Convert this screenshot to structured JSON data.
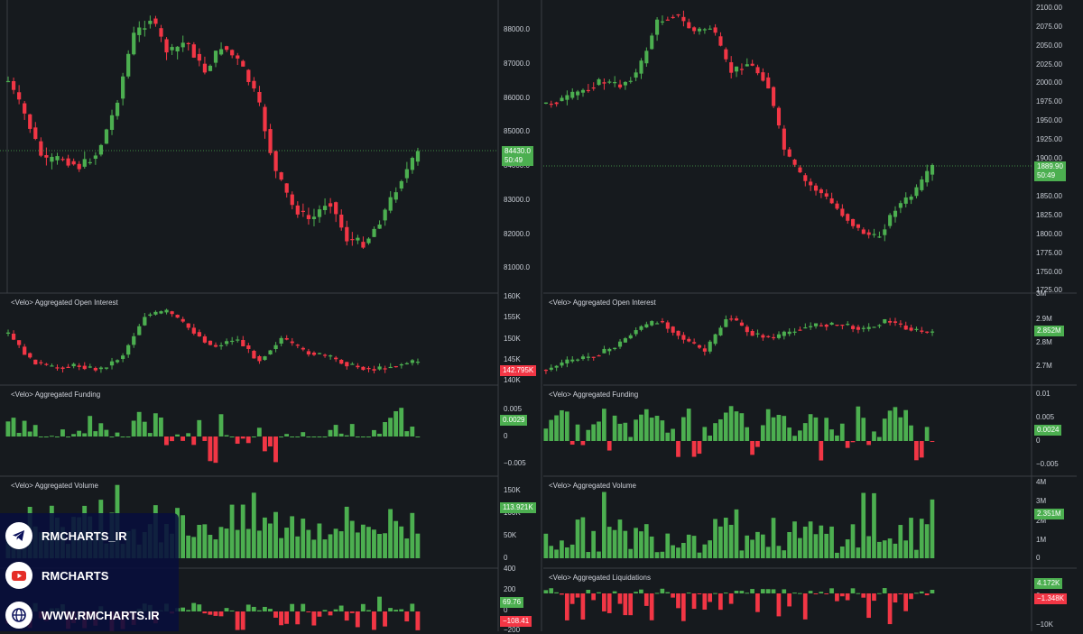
{
  "colors": {
    "up": "#4caf50",
    "down": "#f23645",
    "background": "#161a1e",
    "grid": "#2f3338",
    "promo_bg": "#0a105a"
  },
  "left": {
    "price_ticks": [
      "88000.0",
      "87000.0",
      "86000.0",
      "85000.0",
      "84000.0",
      "83000.0",
      "82000.0",
      "81000.0"
    ],
    "price_tag": {
      "value": "84430.0",
      "countdown": "50:49"
    },
    "oi": {
      "label": "<Velo> Aggregated Open Interest",
      "ticks": [
        "160K",
        "155K",
        "150K",
        "145K",
        "140K"
      ],
      "tag": "142.795K"
    },
    "funding": {
      "label": "<Velo> Aggregated Funding",
      "ticks": [
        "0.005",
        "0",
        "−0.005"
      ],
      "tag": "0.0029"
    },
    "volume": {
      "label": "<Velo> Aggregated Volume",
      "ticks": [
        "150K",
        "100K",
        "50K",
        "0"
      ],
      "tag": "113.921K"
    },
    "liq": {
      "ticks": [
        "400",
        "200",
        "0",
        "−200"
      ],
      "tag_up": "69.76",
      "tag_down": "−108.41"
    }
  },
  "right": {
    "price_ticks": [
      "2100.00",
      "2075.00",
      "2050.00",
      "2025.00",
      "2000.00",
      "1975.00",
      "1950.00",
      "1925.00",
      "1900.00",
      "1875.00",
      "1850.00",
      "1825.00",
      "1800.00",
      "1775.00",
      "1750.00",
      "1725.00"
    ],
    "price_tag": {
      "value": "1889.90",
      "countdown": "50:49"
    },
    "oi": {
      "label": "<Velo> Aggregated Open Interest",
      "ticks": [
        "3M",
        "2.9M",
        "2.8M",
        "2.7M"
      ],
      "tag": "2.852M"
    },
    "funding": {
      "label": "<Velo> Aggregated Funding",
      "ticks": [
        "0.01",
        "0.005",
        "0",
        "−0.005"
      ],
      "tag": "0.0024"
    },
    "volume": {
      "label": "<Velo> Aggregated Volume",
      "ticks": [
        "4M",
        "3M",
        "2M",
        "1M",
        "0"
      ],
      "tag": "2.351M"
    },
    "liq": {
      "label": "<Velo> Aggregated Liquidations",
      "ticks": [
        "0",
        "−10K"
      ],
      "tag_up": "4.172K",
      "tag_down": "−1.348K"
    }
  },
  "promo": {
    "telegram_label": "RMCHARTS_IR",
    "youtube_label": "RMCHARTS",
    "website_label": "WWW.RMCHARTS.IR",
    "telegram_icon": "telegram-icon",
    "youtube_icon": "youtube-icon",
    "globe_icon": "globe-icon"
  }
}
